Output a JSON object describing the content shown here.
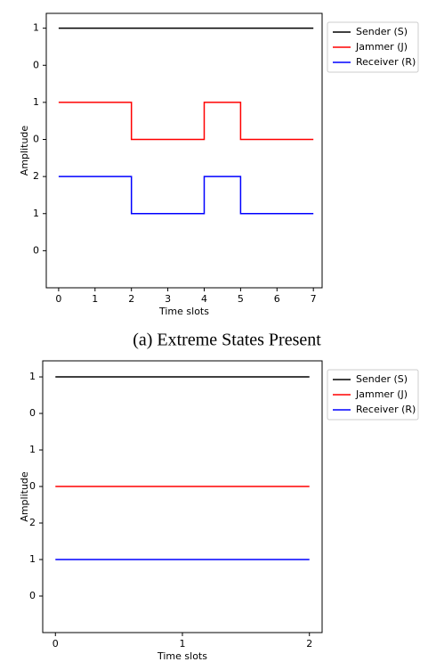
{
  "chart_data": [
    {
      "type": "line",
      "drawstyle": "steps-post",
      "caption": "(a) Extreme States Present",
      "xlabel": "Time slots",
      "ylabel": "Amplitude",
      "x": [
        0,
        1,
        2,
        3,
        4,
        5,
        6,
        7
      ],
      "series": [
        {
          "name": "Sender (S)",
          "color": "#000000",
          "values": [
            6,
            6,
            6,
            6,
            6,
            6,
            6,
            6
          ]
        },
        {
          "name": "Jammer (J)",
          "color": "#ff0000",
          "values": [
            4,
            4,
            3,
            3,
            4,
            3,
            3,
            3
          ]
        },
        {
          "name": "Receiver (R)",
          "color": "#0000ff",
          "values": [
            2,
            2,
            1,
            1,
            2,
            1,
            1,
            1
          ]
        }
      ],
      "xlim": [
        -0.34,
        7.24
      ],
      "xticks": [
        0,
        1,
        2,
        3,
        4,
        5,
        6,
        7
      ],
      "ylim": [
        -1,
        6.4
      ],
      "yticks": [
        {
          "value": 0,
          "label": "0"
        },
        {
          "value": 1,
          "label": "1"
        },
        {
          "value": 2,
          "label": "2"
        },
        {
          "value": 3,
          "label": "0"
        },
        {
          "value": 4,
          "label": "1"
        },
        {
          "value": 5,
          "label": "0"
        },
        {
          "value": 6,
          "label": "1"
        }
      ],
      "legend": "outside-upper-right"
    },
    {
      "type": "line",
      "drawstyle": "default",
      "xlabel": "Time slots",
      "ylabel": "Amplitude",
      "x": [
        0,
        1,
        2
      ],
      "series": [
        {
          "name": "Sender (S)",
          "color": "#000000",
          "values": [
            6,
            6,
            6
          ]
        },
        {
          "name": "Jammer (J)",
          "color": "#ff0000",
          "values": [
            3,
            3,
            3
          ]
        },
        {
          "name": "Receiver (R)",
          "color": "#0000ff",
          "values": [
            1,
            1,
            1
          ]
        }
      ],
      "xlim": [
        -0.1,
        2.1
      ],
      "xticks": [
        0,
        1,
        2
      ],
      "ylim": [
        -1,
        6.44
      ],
      "yticks": [
        {
          "value": 0,
          "label": "0"
        },
        {
          "value": 1,
          "label": "1"
        },
        {
          "value": 2,
          "label": "2"
        },
        {
          "value": 3,
          "label": "0"
        },
        {
          "value": 4,
          "label": "1"
        },
        {
          "value": 5,
          "label": "0"
        },
        {
          "value": 6,
          "label": "1"
        }
      ],
      "legend": "outside-upper-right"
    }
  ]
}
